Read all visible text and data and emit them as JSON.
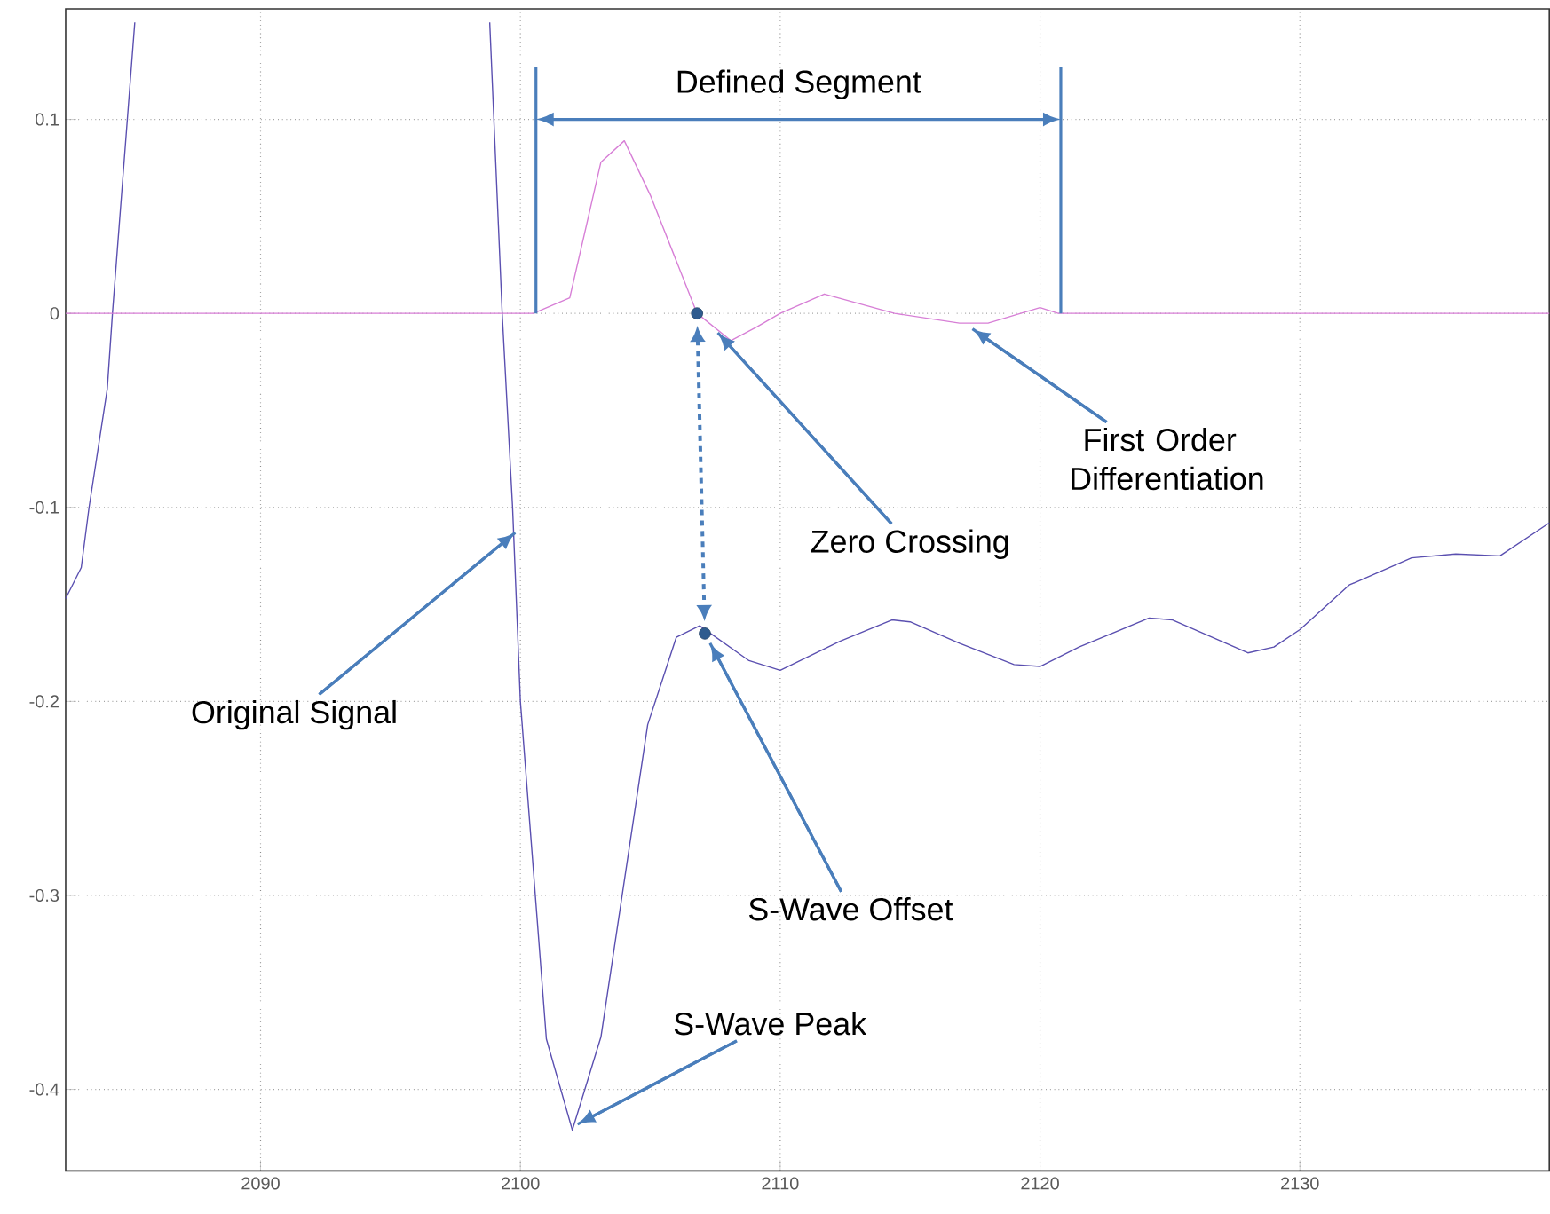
{
  "chart_data": {
    "type": "line",
    "xlim": [
      2082.5,
      2139.6
    ],
    "ylim": [
      -0.442,
      0.157
    ],
    "xticks": [
      2090,
      2100,
      2110,
      2120,
      2130
    ],
    "yticks": [
      -0.4,
      -0.3,
      -0.2,
      -0.1,
      0,
      0.1
    ],
    "grid": true,
    "series": [
      {
        "color": "#5a4fb0",
        "x": [
          2082.5,
          2083.1,
          2083.4,
          2084.1,
          2084.3,
          2085.16,
          2092.0,
          2098.82,
          2099.3,
          2099.7,
          2100.0,
          2101.0,
          2102.0,
          2103.1,
          2104.9,
          2106.0,
          2106.9,
          2108.8,
          2110.0,
          2112.3,
          2114.3,
          2115.0,
          2116.9,
          2119.0,
          2120.0,
          2121.5,
          2124.2,
          2125.1,
          2128.0,
          2129.0,
          2130.0,
          2131.9,
          2134.3,
          2136.0,
          2137.7,
          2139.6
        ],
        "values": [
          -0.147,
          -0.131,
          -0.1,
          -0.039,
          0,
          0.15,
          null,
          0.15,
          0,
          -0.1,
          -0.2,
          -0.374,
          -0.421,
          -0.373,
          -0.212,
          -0.167,
          -0.161,
          -0.179,
          -0.184,
          -0.169,
          -0.158,
          -0.159,
          -0.17,
          -0.181,
          -0.182,
          -0.172,
          -0.157,
          -0.158,
          -0.175,
          -0.172,
          -0.163,
          -0.14,
          -0.126,
          -0.124,
          -0.125,
          -0.108
        ]
      },
      {
        "color": "#d77fd6",
        "x": [
          2082.5,
          2100.5,
          2101.9,
          2103.1,
          2104.0,
          2105.0,
          2106.8,
          2108.1,
          2109.1,
          2110.0,
          2111.7,
          2114.4,
          2116.9,
          2118.0,
          2120.0,
          2120.7,
          2139.6
        ],
        "values": [
          0,
          0,
          0.008,
          0.078,
          0.089,
          0.061,
          0,
          -0.014,
          -0.007,
          0,
          0.01,
          0,
          -0.005,
          -0.005,
          0.003,
          0,
          0
        ]
      },
      {
        "type": "scatter",
        "color": "#2f5c8f",
        "marker": "circle",
        "x": [
          2106.8,
          2107.1
        ],
        "values": [
          0,
          -0.165
        ]
      }
    ],
    "ref_lines": [
      {
        "axis": "x",
        "value": 2100.6,
        "color": "#4a7ebb"
      },
      {
        "axis": "x",
        "value": 2120.8,
        "color": "#4a7ebb"
      }
    ],
    "annotations": [
      {
        "text": "Original Signal",
        "x": 2099.8,
        "y": -0.113
      },
      {
        "text": "Zero Crossing",
        "x": 2107.6,
        "y": -0.01
      },
      {
        "text": "First Order Differentiation",
        "x": 2117.4,
        "y": -0.008
      },
      {
        "text": "S-Wave Offset",
        "x": 2107.3,
        "y": -0.17
      },
      {
        "text": "S-Wave Peak",
        "x": 2102.2,
        "y": -0.418
      },
      "Defined Segment"
    ]
  }
}
